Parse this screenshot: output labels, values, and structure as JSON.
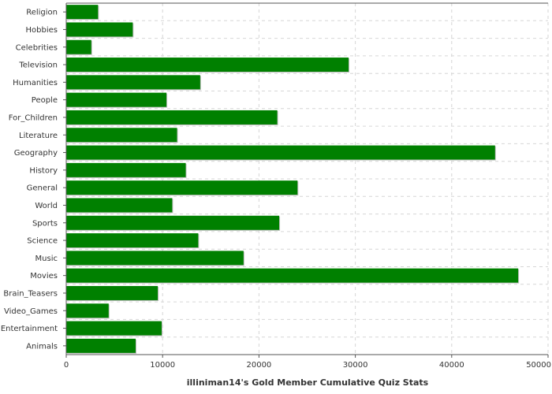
{
  "chart_data": {
    "type": "bar",
    "orientation": "horizontal",
    "title": "",
    "xlabel": "illiniman14's Gold Member Cumulative Quiz Stats",
    "ylabel": "",
    "xlim": [
      0,
      50000
    ],
    "xticks": [
      0,
      10000,
      20000,
      30000,
      40000,
      50000
    ],
    "grid": true,
    "bar_color": "#008000",
    "categories": [
      "Religion",
      "Hobbies",
      "Celebrities",
      "Television",
      "Humanities",
      "People",
      "For_Children",
      "Literature",
      "Geography",
      "History",
      "General",
      "World",
      "Sports",
      "Science",
      "Music",
      "Movies",
      "Brain_Teasers",
      "Video_Games",
      "Entertainment",
      "Animals"
    ],
    "values": [
      3300,
      6900,
      2600,
      29300,
      13900,
      10400,
      21900,
      11500,
      44500,
      12400,
      24000,
      11000,
      22100,
      13700,
      18400,
      46900,
      9500,
      4400,
      9900,
      7200
    ]
  }
}
